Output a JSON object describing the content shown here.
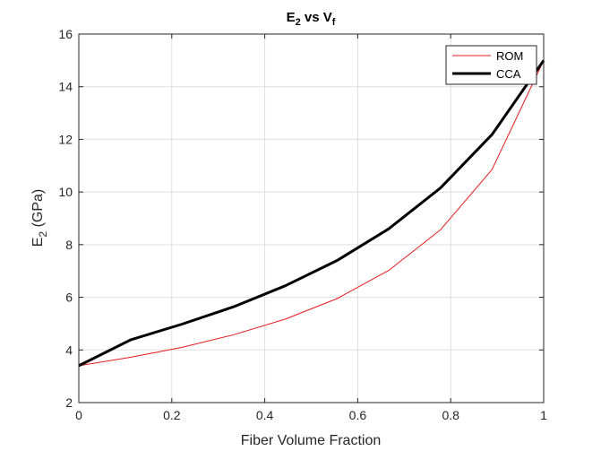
{
  "chart_data": {
    "type": "line",
    "title": {
      "main": "E",
      "sub1": "2",
      "mid": " vs V",
      "sub2": "f"
    },
    "xlabel": "Fiber Volume Fraction",
    "ylabel": {
      "main": "E",
      "sub": "2",
      "rest": " (GPa)"
    },
    "xlim": [
      0,
      1
    ],
    "ylim": [
      2,
      16
    ],
    "xticks": [
      {
        "value": 0,
        "label": "0"
      },
      {
        "value": 0.2,
        "label": "0.2"
      },
      {
        "value": 0.4,
        "label": "0.4"
      },
      {
        "value": 0.6,
        "label": "0.6"
      },
      {
        "value": 0.8,
        "label": "0.8"
      },
      {
        "value": 1,
        "label": "1"
      }
    ],
    "yticks": [
      {
        "value": 2,
        "label": "2"
      },
      {
        "value": 4,
        "label": "4"
      },
      {
        "value": 6,
        "label": "6"
      },
      {
        "value": 8,
        "label": "8"
      },
      {
        "value": 10,
        "label": "10"
      },
      {
        "value": 12,
        "label": "12"
      },
      {
        "value": 14,
        "label": "14"
      },
      {
        "value": 16,
        "label": "16"
      }
    ],
    "grid": true,
    "legend_position": "top-right",
    "x": [
      0,
      0.1111,
      0.2222,
      0.3333,
      0.4444,
      0.5556,
      0.6667,
      0.7778,
      0.8889,
      1.0
    ],
    "series": [
      {
        "name": "ROM",
        "color": "#e41a1c",
        "weight": "thin",
        "values": [
          3.4,
          3.72,
          4.1,
          4.58,
          5.17,
          5.95,
          7.02,
          8.56,
          10.85,
          15.0
        ]
      },
      {
        "name": "CCA",
        "color": "#000000",
        "weight": "thick",
        "values": [
          3.4,
          4.38,
          4.98,
          5.64,
          6.44,
          7.4,
          8.6,
          10.15,
          12.18,
          15.0
        ]
      }
    ]
  }
}
